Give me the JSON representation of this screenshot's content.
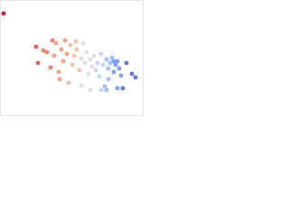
{
  "chart_data": {
    "type": "scatter",
    "xlim": [
      0,
      160
    ],
    "ylim": [
      0,
      130
    ],
    "series": [
      {
        "x": [
          4,
          40,
          42,
          48,
          52,
          56,
          58,
          60,
          62,
          65,
          66,
          68,
          70,
          72,
          74,
          76,
          78,
          80,
          82,
          84,
          85,
          88,
          90,
          90,
          92,
          94,
          96,
          98,
          100,
          100,
          102,
          104,
          106,
          108,
          110,
          112,
          112,
          114,
          116,
          118,
          118,
          120,
          120,
          122,
          124,
          126,
          126,
          128,
          130,
          130,
          132,
          134,
          136,
          140,
          146,
          150
        ],
        "values": [
          115,
          78,
          60,
          74,
          72,
          55,
          85,
          68,
          82,
          50,
          42,
          75,
          62,
          85,
          70,
          38,
          80,
          58,
          68,
          84,
          75,
          52,
          65,
          35,
          82,
          60,
          72,
          48,
          64,
          30,
          56,
          68,
          52,
          60,
          45,
          70,
          30,
          58,
          34,
          64,
          30,
          54,
          42,
          60,
          66,
          50,
          62,
          58,
          62,
          32,
          54,
          46,
          32,
          60,
          48,
          44
        ],
        "colors": [
          "#b40426",
          "#d24b40",
          "#d24b40",
          "#e7745b",
          "#e7745b",
          "#e7745b",
          "#e7745b",
          "#f39577",
          "#f39577",
          "#f39577",
          "#f39577",
          "#f39577",
          "#f39577",
          "#f39577",
          "#f39577",
          "#f7b89c",
          "#f7b89c",
          "#f7b89c",
          "#f7b89c",
          "#f7b89c",
          "#f7b89c",
          "#f7b89c",
          "#dddcdc",
          "#dddcdc",
          "#dddcdc",
          "#dddcdc",
          "#dddcdc",
          "#dddcdc",
          "#dddcdc",
          "#dddcdc",
          "#dddcdc",
          "#dddcdc",
          "#b9d0f9",
          "#b9d0f9",
          "#b9d0f9",
          "#b9d0f9",
          "#b9d0f9",
          "#b9d0f9",
          "#93b5fe",
          "#93b5fe",
          "#93b5fe",
          "#93b5fe",
          "#93b5fe",
          "#93b5fe",
          "#93b5fe",
          "#6f92f3",
          "#6f92f3",
          "#6f92f3",
          "#6f92f3",
          "#6f92f3",
          "#6f92f3",
          "#6f92f3",
          "#4a63d3",
          "#4a63d3",
          "#4a63d3",
          "#4a63d3"
        ]
      }
    ]
  }
}
